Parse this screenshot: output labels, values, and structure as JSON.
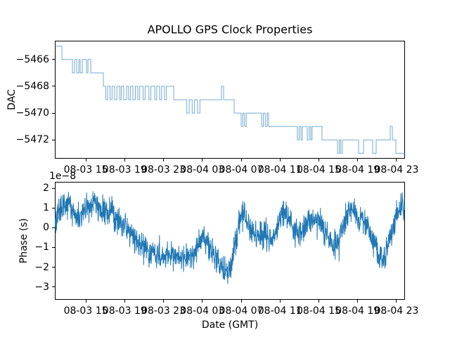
{
  "title": "APOLLO GPS Clock Properties",
  "chart_data": [
    {
      "type": "line",
      "drawstyle": "steps-post",
      "ylabel": "DAC",
      "line_color": "#1f77b4",
      "line_alpha": 0.62,
      "ylim": [
        -5473.4,
        -5464.6
      ],
      "yticks": [
        -5466,
        -5468,
        -5470,
        -5472
      ],
      "ytick_labels": [
        "−5466",
        "−5468",
        "−5470",
        "−5472"
      ],
      "xlim_hours": [
        11.81,
        47.87
      ],
      "xtick_hours": [
        15,
        19,
        23,
        27,
        31,
        35,
        39,
        43,
        47
      ],
      "xtick_labels": [
        "08-03 15",
        "08-03 19",
        "08-03 23",
        "08-04 03",
        "08-04 07",
        "08-04 11",
        "08-04 15",
        "08-04 19",
        "08-04 23"
      ],
      "steps": [
        [
          11.81,
          -5465
        ],
        [
          12.54,
          -5466
        ],
        [
          13.62,
          -5467
        ],
        [
          13.84,
          -5466
        ],
        [
          14.06,
          -5467
        ],
        [
          14.28,
          -5466
        ],
        [
          14.42,
          -5467
        ],
        [
          14.64,
          -5466
        ],
        [
          15.07,
          -5467
        ],
        [
          15.22,
          -5466
        ],
        [
          15.51,
          -5467
        ],
        [
          16.81,
          -5468
        ],
        [
          17.05,
          -5469
        ],
        [
          17.25,
          -5468
        ],
        [
          17.5,
          -5469
        ],
        [
          17.7,
          -5468
        ],
        [
          17.95,
          -5469
        ],
        [
          18.2,
          -5468
        ],
        [
          18.5,
          -5469
        ],
        [
          18.65,
          -5468
        ],
        [
          18.9,
          -5469
        ],
        [
          19.2,
          -5468
        ],
        [
          19.4,
          -5469
        ],
        [
          19.6,
          -5468
        ],
        [
          19.85,
          -5469
        ],
        [
          20.1,
          -5468
        ],
        [
          20.35,
          -5469
        ],
        [
          20.55,
          -5468
        ],
        [
          20.9,
          -5469
        ],
        [
          21.1,
          -5468
        ],
        [
          21.5,
          -5469
        ],
        [
          21.7,
          -5468
        ],
        [
          22.1,
          -5469
        ],
        [
          22.3,
          -5468
        ],
        [
          22.6,
          -5469
        ],
        [
          22.8,
          -5468
        ],
        [
          23.1,
          -5469
        ],
        [
          23.3,
          -5468
        ],
        [
          24.05,
          -5469
        ],
        [
          25.4,
          -5470
        ],
        [
          25.65,
          -5469
        ],
        [
          25.95,
          -5470
        ],
        [
          26.2,
          -5469
        ],
        [
          26.5,
          -5470
        ],
        [
          26.75,
          -5469
        ],
        [
          28.97,
          -5468
        ],
        [
          29.19,
          -5469
        ],
        [
          30.28,
          -5470
        ],
        [
          31.0,
          -5471
        ],
        [
          31.17,
          -5470
        ],
        [
          31.35,
          -5471
        ],
        [
          31.52,
          -5470
        ],
        [
          33.1,
          -5471
        ],
        [
          33.28,
          -5470
        ],
        [
          33.48,
          -5471
        ],
        [
          33.68,
          -5470
        ],
        [
          33.82,
          -5471
        ],
        [
          36.79,
          -5472
        ],
        [
          36.97,
          -5471
        ],
        [
          37.15,
          -5472
        ],
        [
          37.3,
          -5471
        ],
        [
          37.8,
          -5472
        ],
        [
          38.0,
          -5471
        ],
        [
          38.16,
          -5472
        ],
        [
          38.3,
          -5471
        ],
        [
          39.32,
          -5472
        ],
        [
          40.92,
          -5473
        ],
        [
          41.1,
          -5472
        ],
        [
          41.25,
          -5473
        ],
        [
          41.42,
          -5472
        ],
        [
          43.09,
          -5473
        ],
        [
          43.6,
          -5472
        ],
        [
          44.54,
          -5473
        ],
        [
          44.9,
          -5472
        ],
        [
          46.35,
          -5471
        ],
        [
          46.57,
          -5472
        ],
        [
          46.93,
          -5473
        ]
      ]
    },
    {
      "type": "line",
      "ylabel": "Phase (s)",
      "xlabel": "Date (GMT)",
      "offset_text": "1e−8",
      "line_color": "#1f77b4",
      "line_alpha": 1.0,
      "units": "1e-8 s",
      "ylim": [
        -3.65,
        2.32
      ],
      "yticks": [
        2,
        1,
        0,
        -1,
        -2,
        -3
      ],
      "ytick_labels": [
        "2",
        "1",
        "0",
        "−1",
        "−2",
        "−3"
      ],
      "xlim_hours": [
        11.81,
        47.87
      ],
      "xtick_hours": [
        15,
        19,
        23,
        27,
        31,
        35,
        39,
        43,
        47
      ],
      "xtick_labels": [
        "08-03 15",
        "08-03 19",
        "08-03 23",
        "08-04 03",
        "08-04 07",
        "08-04 11",
        "08-04 15",
        "08-04 19",
        "08-04 23"
      ],
      "trend": [
        [
          11.81,
          0.1
        ],
        [
          12.1,
          0.7
        ],
        [
          12.6,
          1.0
        ],
        [
          13.0,
          1.2
        ],
        [
          13.4,
          1.1
        ],
        [
          13.9,
          0.7
        ],
        [
          14.3,
          0.3
        ],
        [
          14.7,
          0.9
        ],
        [
          15.2,
          1.0
        ],
        [
          15.8,
          1.4
        ],
        [
          16.2,
          1.0
        ],
        [
          16.7,
          0.6
        ],
        [
          17.1,
          0.8
        ],
        [
          17.6,
          1.0
        ],
        [
          18.0,
          0.6
        ],
        [
          18.5,
          0.3
        ],
        [
          19.0,
          0.1
        ],
        [
          19.6,
          -0.3
        ],
        [
          20.2,
          -0.6
        ],
        [
          20.8,
          -0.9
        ],
        [
          21.4,
          -1.2
        ],
        [
          22.0,
          -1.3
        ],
        [
          22.6,
          -1.4
        ],
        [
          23.2,
          -1.5
        ],
        [
          23.8,
          -1.3
        ],
        [
          24.4,
          -1.5
        ],
        [
          25.0,
          -1.6
        ],
        [
          25.6,
          -1.5
        ],
        [
          26.2,
          -1.3
        ],
        [
          26.6,
          -0.8
        ],
        [
          27.0,
          -0.4
        ],
        [
          27.4,
          -0.7
        ],
        [
          27.9,
          -1.1
        ],
        [
          28.4,
          -1.5
        ],
        [
          28.9,
          -2.0
        ],
        [
          29.3,
          -2.4
        ],
        [
          29.7,
          -2.2
        ],
        [
          30.1,
          -1.5
        ],
        [
          30.5,
          -0.6
        ],
        [
          30.9,
          0.5
        ],
        [
          31.2,
          0.9
        ],
        [
          31.6,
          0.3
        ],
        [
          32.0,
          -0.2
        ],
        [
          32.5,
          -0.4
        ],
        [
          33.0,
          -0.5
        ],
        [
          33.5,
          -0.3
        ],
        [
          34.0,
          -0.4
        ],
        [
          34.5,
          -0.5
        ],
        [
          35.0,
          0.3
        ],
        [
          35.3,
          0.9
        ],
        [
          35.7,
          0.7
        ],
        [
          36.2,
          0.1
        ],
        [
          36.7,
          -0.3
        ],
        [
          37.2,
          -0.2
        ],
        [
          37.7,
          0.0
        ],
        [
          38.2,
          0.4
        ],
        [
          38.6,
          0.6
        ],
        [
          39.0,
          0.3
        ],
        [
          39.5,
          0.0
        ],
        [
          40.0,
          -0.4
        ],
        [
          40.5,
          -1.0
        ],
        [
          41.0,
          -0.6
        ],
        [
          41.5,
          0.2
        ],
        [
          42.0,
          0.6
        ],
        [
          42.5,
          0.9
        ],
        [
          43.0,
          0.4
        ],
        [
          43.5,
          0.6
        ],
        [
          44.0,
          0.1
        ],
        [
          44.4,
          -0.4
        ],
        [
          44.8,
          -0.9
        ],
        [
          45.2,
          -1.3
        ],
        [
          45.6,
          -1.6
        ],
        [
          46.0,
          -1.1
        ],
        [
          46.4,
          -0.4
        ],
        [
          46.8,
          0.3
        ],
        [
          47.2,
          0.9
        ],
        [
          47.6,
          1.2
        ],
        [
          47.87,
          1.0
        ]
      ],
      "noise": {
        "amplitude": 0.66,
        "samples": 1500,
        "down_spike_chance": 0.02,
        "up_spike_chance": 0.01,
        "clamp": [
          -3.35,
          2.0
        ]
      }
    }
  ]
}
